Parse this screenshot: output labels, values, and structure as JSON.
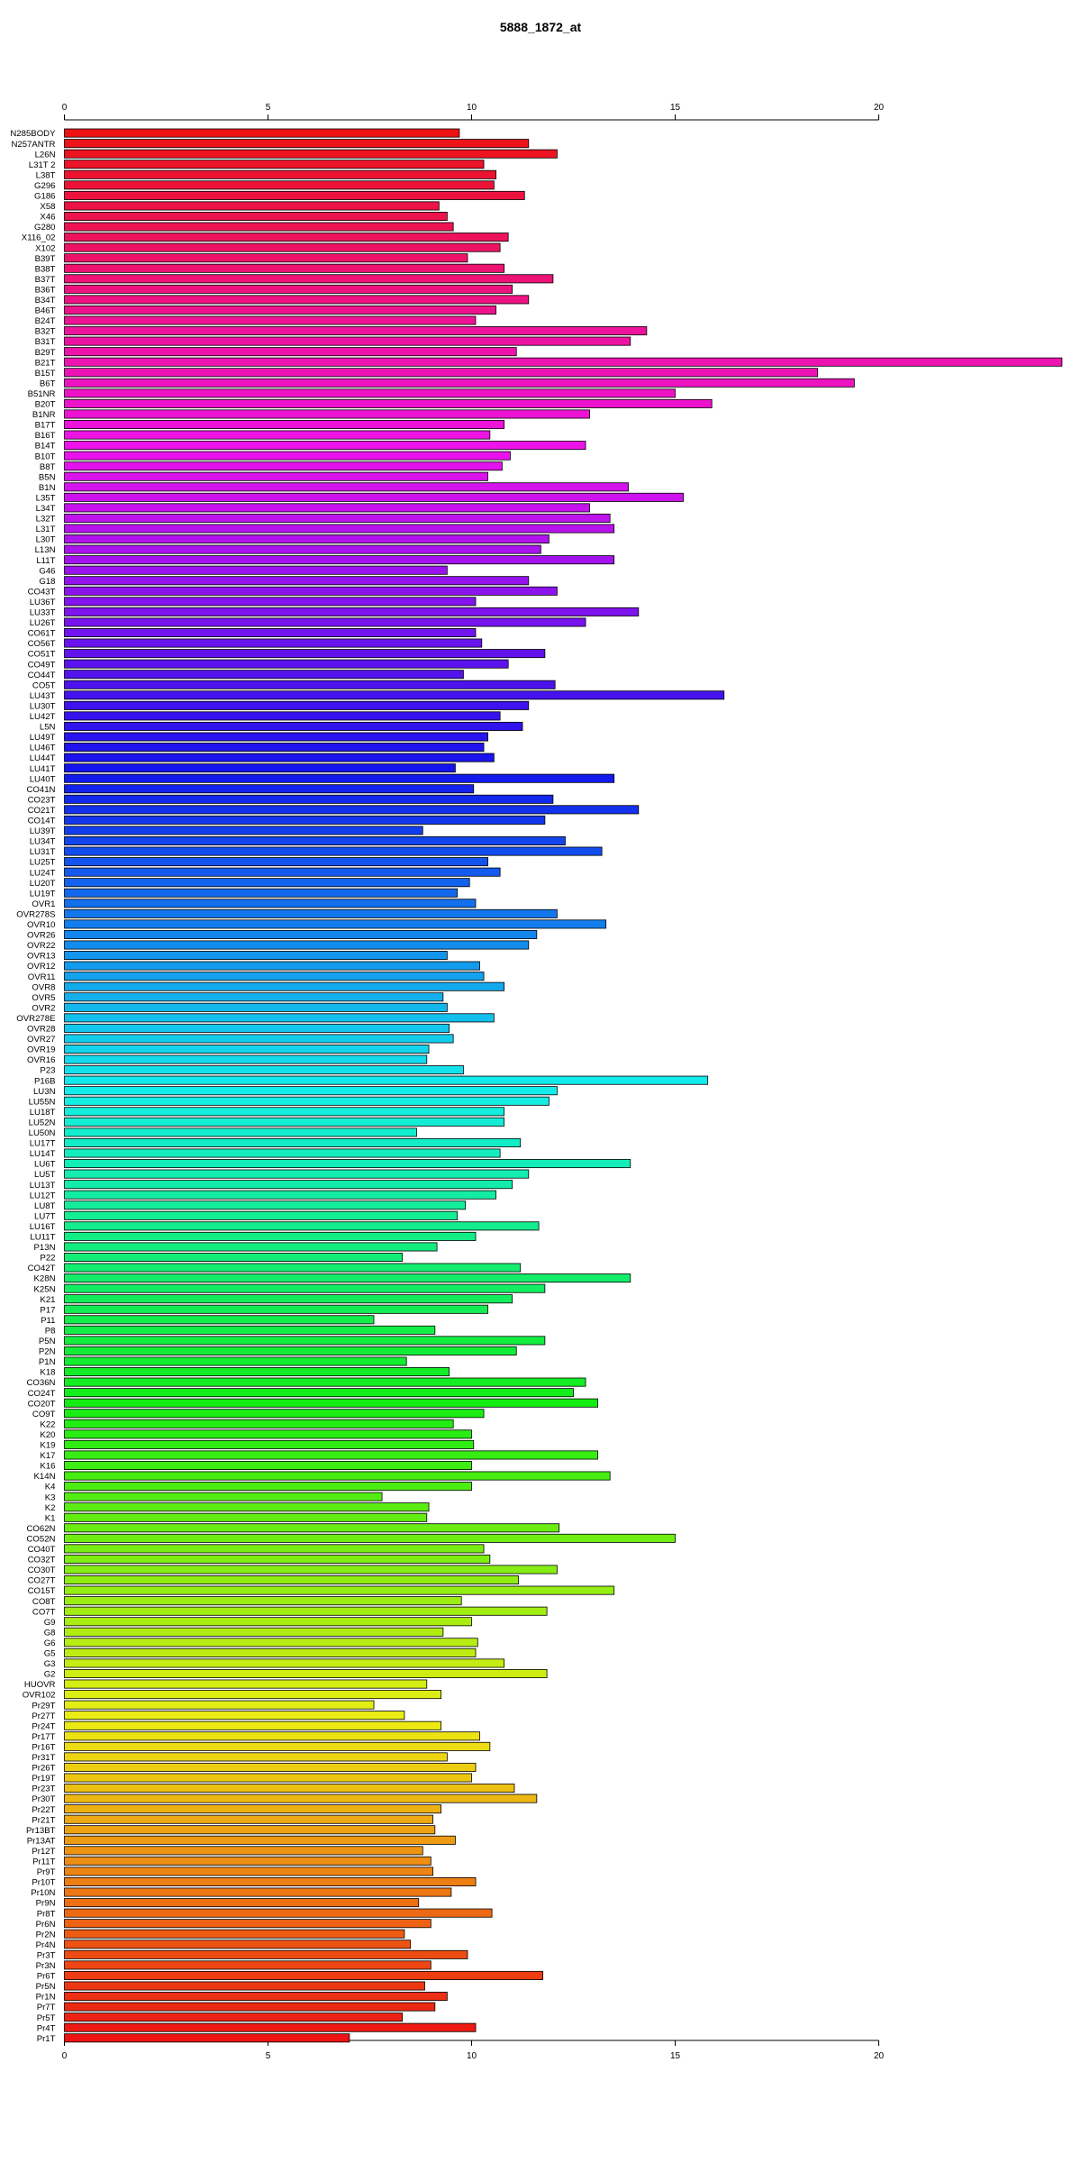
{
  "chart_data": {
    "type": "bar",
    "orientation": "horizontal",
    "title": "5888_1872_at",
    "xlabel": "",
    "ylabel": "",
    "xlim": [
      0,
      24.5
    ],
    "x_ticks": [
      0,
      5,
      10,
      15,
      20
    ],
    "x_tick_labels": [
      "0",
      "5",
      "10",
      "15",
      "20"
    ],
    "axes": "top and bottom",
    "grid": false,
    "legend": "none",
    "bar_color_scheme": "rainbow from red through magenta, blue, cyan, green, yellow, orange back to red",
    "categories": [
      "N285BODY",
      "N257ANTR",
      "L26N",
      "L31T 2",
      "L38T",
      "G296",
      "G186",
      "X58",
      "X46",
      "G280",
      "X116_02",
      "X102",
      "B39T",
      "B38T",
      "B37T",
      "B36T",
      "B34T",
      "B46T",
      "B24T",
      "B32T",
      "B31T",
      "B29T",
      "B21T",
      "B15T",
      "B6T",
      "B51NR",
      "B20T",
      "B1NR",
      "B17T",
      "B16T",
      "B14T",
      "B10T",
      "B8T",
      "B5N",
      "B1N",
      "L35T",
      "L34T",
      "L32T",
      "L31T",
      "L30T",
      "L13N",
      "L11T",
      "G46",
      "G18",
      "CO43T",
      "LU36T",
      "LU33T",
      "LU26T",
      "CO61T",
      "CO56T",
      "CO51T",
      "CO49T",
      "CO44T",
      "CO5T",
      "LU43T",
      "LU30T",
      "LU42T",
      "L5N",
      "LU49T",
      "LU46T",
      "LU44T",
      "LU41T",
      "LU40T",
      "CO41N",
      "CO23T",
      "CO21T",
      "CO14T",
      "LU39T",
      "LU34T",
      "LU31T",
      "LU25T",
      "LU24T",
      "LU20T",
      "LU19T",
      "OVR1",
      "OVR278S",
      "OVR10",
      "OVR26",
      "OVR22",
      "OVR13",
      "OVR12",
      "OVR11",
      "OVR8",
      "OVR5",
      "OVR2",
      "OVR278E",
      "OVR28",
      "OVR27",
      "OVR19",
      "OVR16",
      "P23",
      "P16B",
      "LU3N",
      "LU55N",
      "LU18T",
      "LU52N",
      "LU50N",
      "LU17T",
      "LU14T",
      "LU6T",
      "LU5T",
      "LU13T",
      "LU12T",
      "LU8T",
      "LU7T",
      "LU16T",
      "LU11T",
      "P13N",
      "P22",
      "CO42T",
      "K28N",
      "K25N",
      "K21",
      "P17",
      "P11",
      "P8",
      "P5N",
      "P2N",
      "P1N",
      "K18",
      "CO36N",
      "CO24T",
      "CO20T",
      "CO9T",
      "K22",
      "K20",
      "K19",
      "K17",
      "K16",
      "K14N",
      "K4",
      "K3",
      "K2",
      "K1",
      "CO62N",
      "CO52N",
      "CO40T",
      "CO32T",
      "CO30T",
      "CO27T",
      "CO15T",
      "CO8T",
      "CO7T",
      "G9",
      "G8",
      "G6",
      "G5",
      "G3",
      "G2",
      "HUOVR",
      "OVR102",
      "Pr29T",
      "Pr27T",
      "Pr24T",
      "Pr17T",
      "Pr16T",
      "Pr31T",
      "Pr26T",
      "Pr19T",
      "Pr23T",
      "Pr30T",
      "Pr22T",
      "Pr21T",
      "Pr13BT",
      "Pr13AT",
      "Pr12T",
      "Pr11T",
      "Pr9T",
      "Pr10T",
      "Pr10N",
      "Pr9N",
      "Pr8T",
      "Pr6N",
      "Pr2N",
      "Pr4N",
      "Pr3T",
      "Pr3N",
      "Pr6T",
      "Pr5N",
      "Pr1N",
      "Pr7T",
      "Pr5T",
      "Pr4T",
      "Pr1T"
    ],
    "values": [
      9.7,
      11.4,
      12.1,
      10.3,
      10.6,
      10.55,
      11.3,
      9.2,
      9.4,
      9.55,
      10.9,
      10.7,
      9.9,
      10.8,
      12.0,
      11.0,
      11.4,
      10.6,
      10.1,
      14.3,
      13.9,
      11.1,
      24.5,
      18.5,
      19.4,
      15.0,
      15.9,
      12.9,
      10.8,
      10.45,
      12.8,
      10.95,
      10.75,
      10.4,
      13.85,
      15.2,
      12.9,
      13.4,
      13.5,
      11.9,
      11.7,
      13.5,
      9.4,
      11.4,
      12.1,
      10.1,
      14.1,
      12.8,
      10.1,
      10.25,
      11.8,
      10.9,
      9.8,
      12.05,
      16.2,
      11.4,
      10.7,
      11.25,
      10.4,
      10.3,
      10.55,
      9.6,
      13.5,
      10.05,
      12.0,
      14.1,
      11.8,
      8.8,
      12.3,
      13.2,
      10.4,
      10.7,
      9.95,
      9.65,
      10.1,
      12.1,
      13.3,
      11.6,
      11.4,
      9.4,
      10.2,
      10.3,
      10.8,
      9.3,
      9.4,
      10.55,
      9.45,
      9.55,
      8.95,
      8.9,
      9.8,
      15.8,
      12.1,
      11.9,
      10.8,
      10.8,
      8.65,
      11.2,
      10.7,
      13.9,
      11.4,
      11.0,
      10.6,
      9.85,
      9.65,
      11.65,
      10.1,
      9.15,
      8.3,
      11.2,
      13.9,
      11.8,
      11.0,
      10.4,
      7.6,
      9.1,
      11.8,
      11.1,
      8.4,
      9.45,
      12.8,
      12.5,
      13.1,
      10.3,
      9.55,
      10.0,
      10.05,
      13.1,
      10.0,
      13.4,
      10.0,
      7.8,
      8.95,
      8.9,
      12.15,
      15.0,
      10.3,
      10.45,
      12.1,
      11.15,
      13.5,
      9.75,
      11.85,
      10.0,
      9.3,
      10.15,
      10.1,
      10.8,
      11.85,
      8.9,
      9.25,
      7.6,
      8.35,
      9.25,
      10.2,
      10.45,
      9.4,
      10.1,
      10.0,
      11.05,
      11.6,
      9.25,
      9.05,
      9.1,
      9.6,
      8.8,
      9.0,
      9.05,
      10.1,
      9.5,
      8.7,
      10.5,
      9.0,
      8.35,
      8.5,
      9.9,
      9.0,
      11.75,
      8.85,
      9.4,
      9.1,
      8.3,
      10.1,
      7.0
    ]
  }
}
